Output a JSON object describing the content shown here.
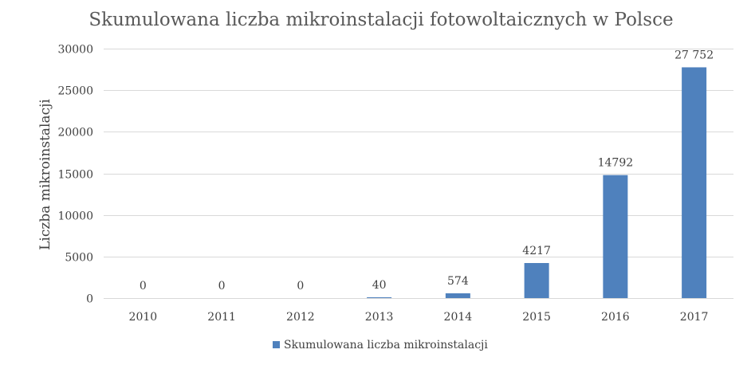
{
  "chart_data": {
    "type": "bar",
    "title": "Skumulowana liczba mikroinstalacji fotowoltaicznych w Polsce",
    "ylabel": "Liczba mikroinstalacji",
    "xlabel": "",
    "categories": [
      "2010",
      "2011",
      "2012",
      "2013",
      "2014",
      "2015",
      "2016",
      "2017"
    ],
    "series": [
      {
        "name": "Skumulowana liczba mikroinstalacji",
        "values": [
          0,
          0,
          0,
          40,
          574,
          4217,
          14792,
          27752
        ],
        "data_labels": [
          "0",
          "0",
          "0",
          "40",
          "574",
          "4217",
          "14792",
          "27 752"
        ],
        "color": "#4f81bd"
      }
    ],
    "ylim": [
      0,
      30000
    ],
    "yticks": [
      "0",
      "5000",
      "10000",
      "15000",
      "20000",
      "25000",
      "30000"
    ],
    "grid": true,
    "legend_position": "bottom",
    "colors": {
      "bar": "#4f81bd",
      "grid": "#d9d9d9",
      "text": "#404040",
      "title": "#595959"
    }
  }
}
